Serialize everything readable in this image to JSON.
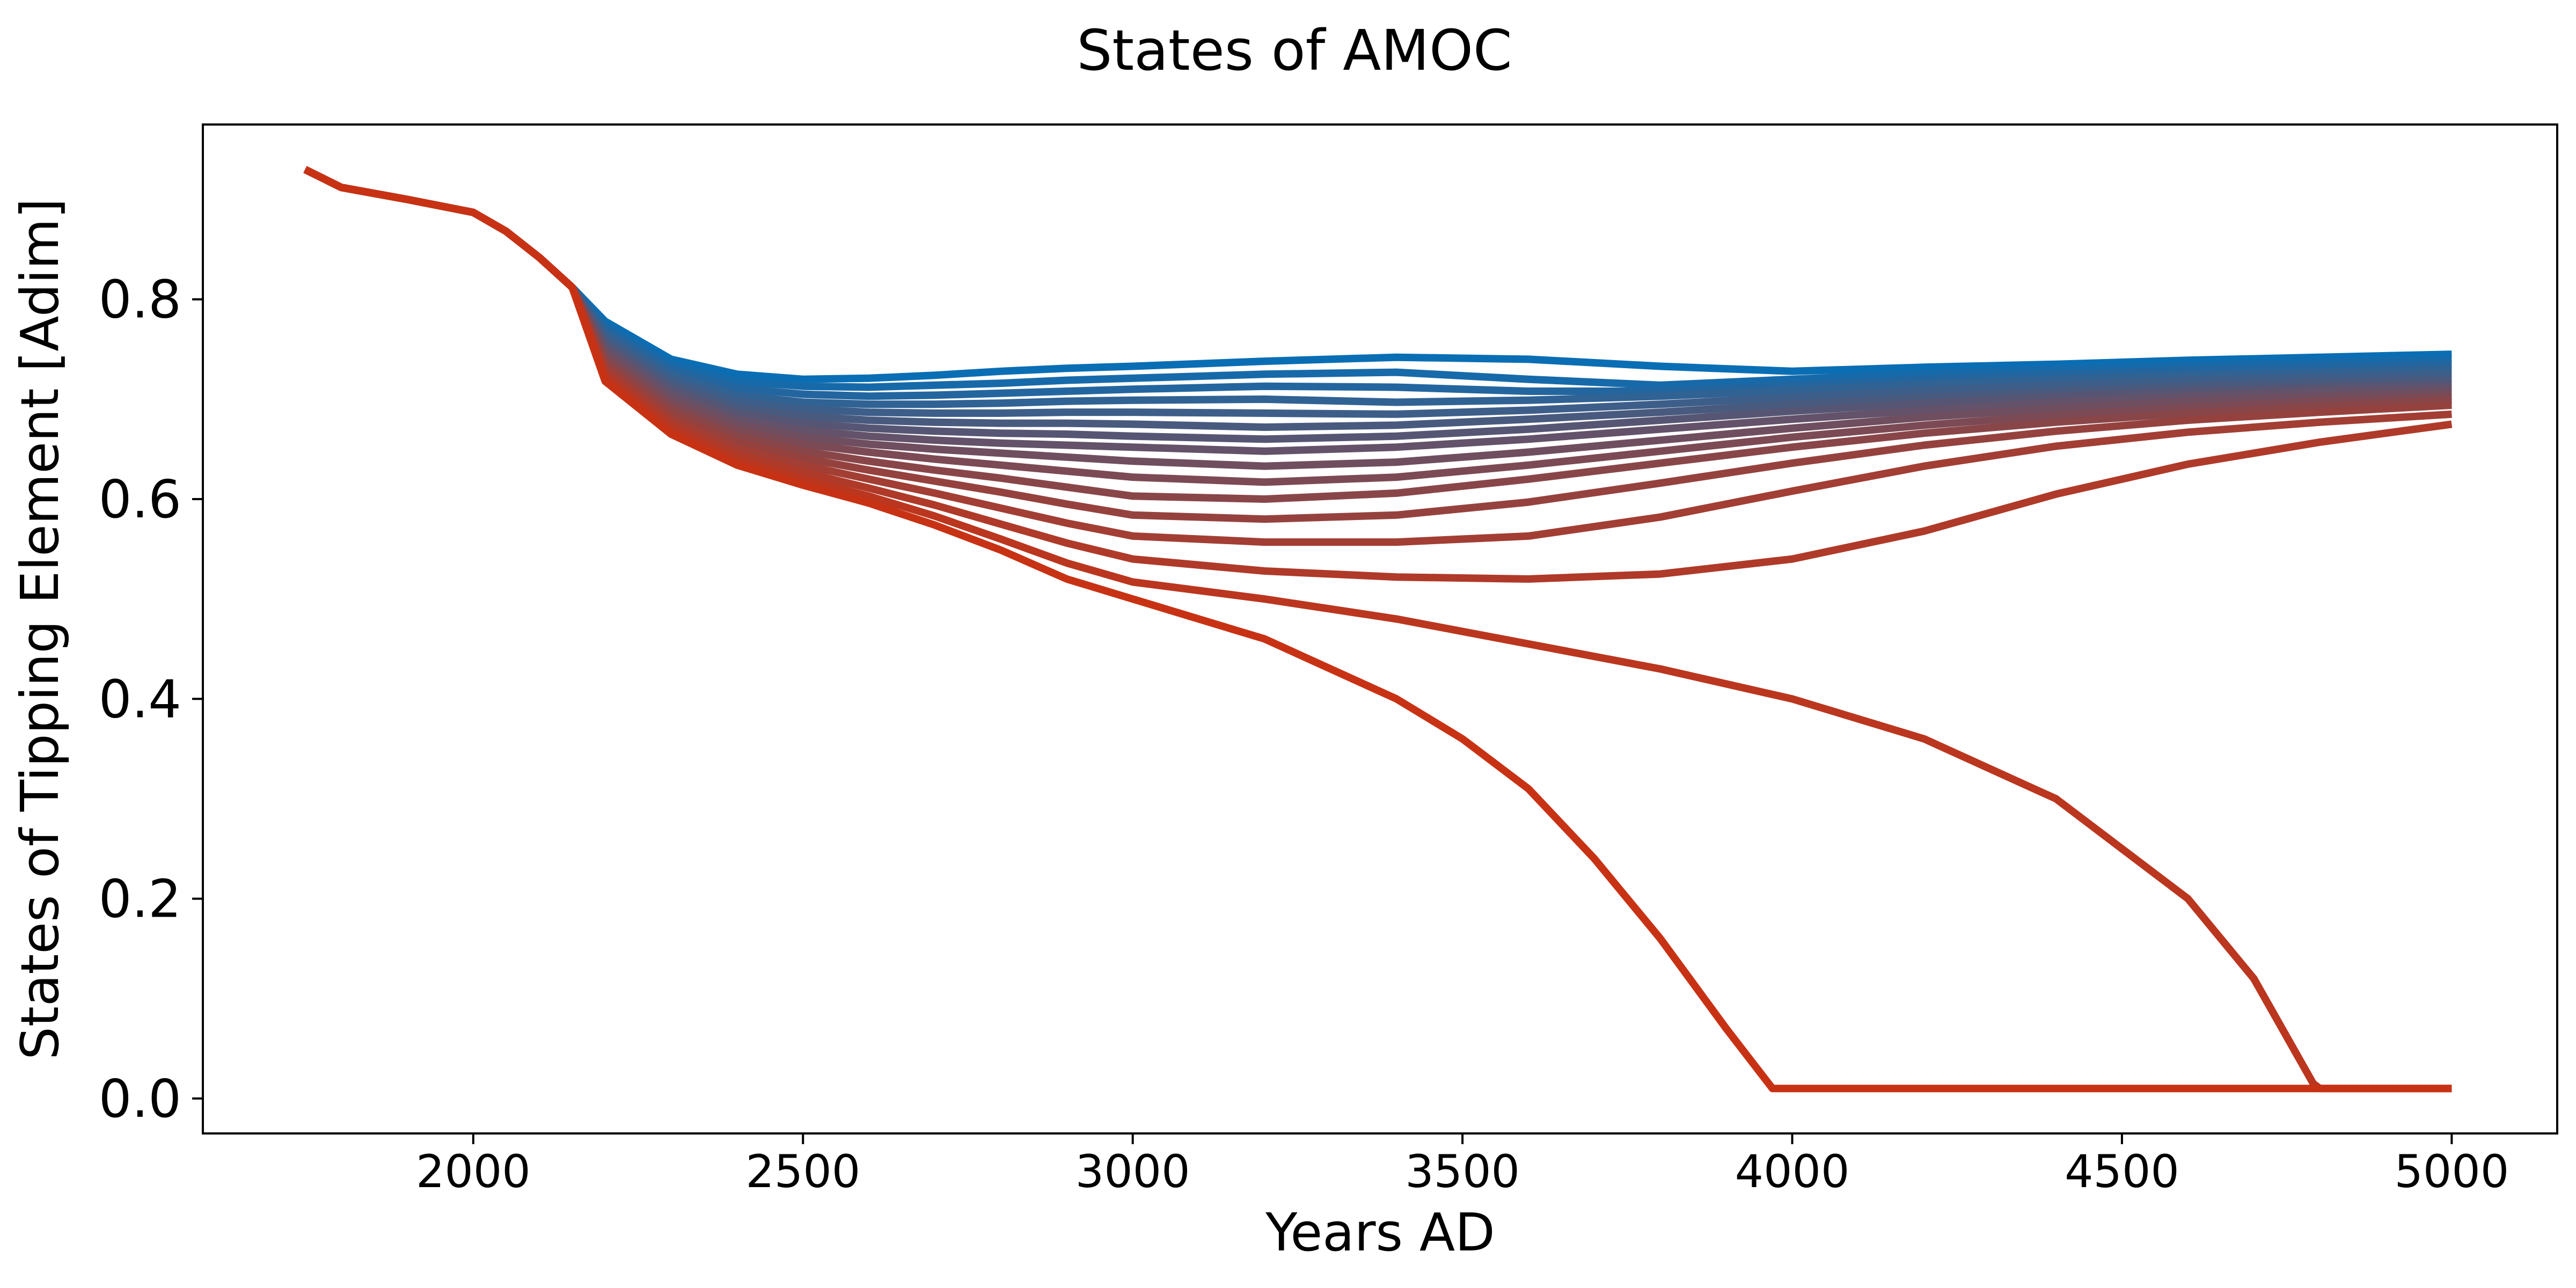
{
  "chart_data": {
    "type": "line",
    "title": "States of AMOC",
    "xlabel": "Years AD",
    "ylabel": "States of Tipping Element [Adim]",
    "xlim": [
      1590,
      5160
    ],
    "ylim": [
      -0.035,
      0.975
    ],
    "xticks": [
      2000,
      2500,
      3000,
      3500,
      4000,
      4500,
      5000
    ],
    "yticks": [
      0.0,
      0.2,
      0.4,
      0.6,
      0.8
    ],
    "xtick_labels": [
      "2000",
      "2500",
      "3000",
      "3500",
      "4000",
      "4500",
      "5000"
    ],
    "ytick_labels": [
      "0.0",
      "0.2",
      "0.4",
      "0.6",
      "0.8"
    ],
    "grid": false,
    "legend": false,
    "colors": {
      "start": "#0a6eb4",
      "end": "#c83214"
    },
    "common_start": {
      "x": [
        1745,
        1800,
        1900,
        2000,
        2050,
        2100,
        2150
      ],
      "y": [
        0.93,
        0.912,
        0.9,
        0.887,
        0.868,
        0.842,
        0.812
      ]
    },
    "series": [
      {
        "x": [
          2150,
          2200,
          2300,
          2400,
          2500,
          2600,
          2700,
          2800,
          2900,
          3000,
          3200,
          3400,
          3600,
          3800,
          4000,
          4200,
          4400,
          4600,
          4800,
          5000
        ],
        "y": [
          0.812,
          0.778,
          0.74,
          0.725,
          0.72,
          0.721,
          0.724,
          0.728,
          0.731,
          0.733,
          0.738,
          0.742,
          0.74,
          0.733,
          0.728,
          0.732,
          0.735,
          0.739,
          0.742,
          0.745
        ]
      },
      {
        "x": [
          2150,
          2200,
          2300,
          2400,
          2500,
          2600,
          2700,
          2800,
          2900,
          3000,
          3200,
          3400,
          3600,
          3800,
          4000,
          4200,
          4400,
          4600,
          4800,
          5000
        ],
        "y": [
          0.81,
          0.774,
          0.735,
          0.718,
          0.713,
          0.712,
          0.714,
          0.716,
          0.719,
          0.721,
          0.725,
          0.727,
          0.72,
          0.714,
          0.72,
          0.726,
          0.73,
          0.734,
          0.737,
          0.74
        ]
      },
      {
        "x": [
          2150,
          2200,
          2300,
          2400,
          2500,
          2600,
          2700,
          2800,
          2900,
          3000,
          3200,
          3400,
          3600,
          3800,
          4000,
          4200,
          4400,
          4600,
          4800,
          5000
        ],
        "y": [
          0.808,
          0.77,
          0.73,
          0.711,
          0.705,
          0.703,
          0.704,
          0.706,
          0.708,
          0.71,
          0.713,
          0.712,
          0.708,
          0.708,
          0.714,
          0.72,
          0.725,
          0.729,
          0.732,
          0.735
        ]
      },
      {
        "x": [
          2150,
          2200,
          2300,
          2400,
          2500,
          2600,
          2700,
          2800,
          2900,
          3000,
          3200,
          3400,
          3600,
          3800,
          4000,
          4200,
          4400,
          4600,
          4800,
          5000
        ],
        "y": [
          0.806,
          0.766,
          0.725,
          0.704,
          0.697,
          0.695,
          0.695,
          0.696,
          0.698,
          0.699,
          0.7,
          0.697,
          0.699,
          0.703,
          0.709,
          0.715,
          0.72,
          0.724,
          0.727,
          0.73
        ]
      },
      {
        "x": [
          2150,
          2200,
          2300,
          2400,
          2500,
          2600,
          2700,
          2800,
          2900,
          3000,
          3200,
          3400,
          3600,
          3800,
          4000,
          4200,
          4400,
          4600,
          4800,
          5000
        ],
        "y": [
          0.804,
          0.762,
          0.72,
          0.698,
          0.69,
          0.687,
          0.686,
          0.686,
          0.687,
          0.687,
          0.686,
          0.685,
          0.689,
          0.695,
          0.702,
          0.709,
          0.714,
          0.719,
          0.722,
          0.725
        ]
      },
      {
        "x": [
          2150,
          2200,
          2300,
          2400,
          2500,
          2600,
          2700,
          2800,
          2900,
          3000,
          3200,
          3400,
          3600,
          3800,
          4000,
          4200,
          4400,
          4600,
          4800,
          5000
        ],
        "y": [
          0.802,
          0.758,
          0.715,
          0.692,
          0.683,
          0.679,
          0.677,
          0.676,
          0.676,
          0.675,
          0.672,
          0.674,
          0.68,
          0.687,
          0.695,
          0.702,
          0.708,
          0.713,
          0.717,
          0.72
        ]
      },
      {
        "x": [
          2150,
          2200,
          2300,
          2400,
          2500,
          2600,
          2700,
          2800,
          2900,
          3000,
          3200,
          3400,
          3600,
          3800,
          4000,
          4200,
          4400,
          4600,
          4800,
          5000
        ],
        "y": [
          0.8,
          0.754,
          0.71,
          0.686,
          0.676,
          0.671,
          0.668,
          0.666,
          0.665,
          0.663,
          0.66,
          0.663,
          0.67,
          0.679,
          0.688,
          0.696,
          0.703,
          0.708,
          0.712,
          0.715
        ]
      },
      {
        "x": [
          2150,
          2200,
          2300,
          2400,
          2500,
          2600,
          2700,
          2800,
          2900,
          3000,
          3200,
          3400,
          3600,
          3800,
          4000,
          4200,
          4400,
          4600,
          4800,
          5000
        ],
        "y": [
          0.798,
          0.75,
          0.705,
          0.68,
          0.669,
          0.663,
          0.659,
          0.656,
          0.654,
          0.652,
          0.648,
          0.652,
          0.66,
          0.67,
          0.68,
          0.689,
          0.697,
          0.703,
          0.708,
          0.711
        ]
      },
      {
        "x": [
          2150,
          2200,
          2300,
          2400,
          2500,
          2600,
          2700,
          2800,
          2900,
          3000,
          3200,
          3400,
          3600,
          3800,
          4000,
          4200,
          4400,
          4600,
          4800,
          5000
        ],
        "y": [
          0.796,
          0.746,
          0.7,
          0.675,
          0.662,
          0.655,
          0.65,
          0.646,
          0.642,
          0.638,
          0.633,
          0.637,
          0.647,
          0.659,
          0.671,
          0.682,
          0.691,
          0.698,
          0.703,
          0.707
        ]
      },
      {
        "x": [
          2150,
          2200,
          2300,
          2400,
          2500,
          2600,
          2700,
          2800,
          2900,
          3000,
          3200,
          3400,
          3600,
          3800,
          4000,
          4200,
          4400,
          4600,
          4800,
          5000
        ],
        "y": [
          0.794,
          0.742,
          0.695,
          0.669,
          0.655,
          0.647,
          0.64,
          0.634,
          0.628,
          0.622,
          0.617,
          0.622,
          0.634,
          0.648,
          0.662,
          0.674,
          0.684,
          0.692,
          0.698,
          0.703
        ]
      },
      {
        "x": [
          2150,
          2200,
          2300,
          2400,
          2500,
          2600,
          2700,
          2800,
          2900,
          3000,
          3200,
          3400,
          3600,
          3800,
          4000,
          4200,
          4400,
          4600,
          4800,
          5000
        ],
        "y": [
          0.792,
          0.738,
          0.69,
          0.663,
          0.648,
          0.638,
          0.629,
          0.621,
          0.612,
          0.603,
          0.6,
          0.606,
          0.62,
          0.636,
          0.652,
          0.666,
          0.677,
          0.686,
          0.693,
          0.699
        ]
      },
      {
        "x": [
          2150,
          2200,
          2300,
          2400,
          2500,
          2600,
          2700,
          2800,
          2900,
          3000,
          3200,
          3400,
          3600,
          3800,
          4000,
          4200,
          4400,
          4600,
          4800,
          5000
        ],
        "y": [
          0.79,
          0.734,
          0.685,
          0.657,
          0.641,
          0.629,
          0.618,
          0.607,
          0.595,
          0.584,
          0.58,
          0.584,
          0.597,
          0.616,
          0.636,
          0.654,
          0.668,
          0.679,
          0.687,
          0.694
        ]
      },
      {
        "x": [
          2150,
          2200,
          2300,
          2400,
          2500,
          2600,
          2700,
          2800,
          2900,
          3000,
          3200,
          3400,
          3600,
          3800,
          4000,
          4200,
          4400,
          4600,
          4800,
          5000
        ],
        "y": [
          0.788,
          0.73,
          0.68,
          0.651,
          0.634,
          0.62,
          0.606,
          0.591,
          0.576,
          0.563,
          0.557,
          0.557,
          0.563,
          0.582,
          0.608,
          0.633,
          0.653,
          0.667,
          0.677,
          0.685
        ]
      },
      {
        "x": [
          2150,
          2200,
          2300,
          2400,
          2500,
          2600,
          2700,
          2800,
          2900,
          3000,
          3200,
          3400,
          3600,
          3800,
          4000,
          4200,
          4400,
          4600,
          4800,
          5000
        ],
        "y": [
          0.786,
          0.726,
          0.675,
          0.645,
          0.627,
          0.611,
          0.594,
          0.575,
          0.556,
          0.54,
          0.528,
          0.522,
          0.52,
          0.525,
          0.54,
          0.568,
          0.605,
          0.635,
          0.657,
          0.675
        ]
      },
      {
        "x": [
          2150,
          2200,
          2300,
          2400,
          2500,
          2600,
          2700,
          2800,
          2900,
          3000,
          3200,
          3400,
          3600,
          3800,
          4000,
          4200,
          4400,
          4600,
          4700,
          4790,
          4800,
          5000
        ],
        "y": [
          0.784,
          0.722,
          0.67,
          0.639,
          0.62,
          0.603,
          0.583,
          0.56,
          0.536,
          0.517,
          0.5,
          0.48,
          0.455,
          0.43,
          0.4,
          0.36,
          0.3,
          0.2,
          0.12,
          0.015,
          0.01,
          0.01
        ]
      },
      {
        "x": [
          2150,
          2200,
          2300,
          2400,
          2500,
          2600,
          2700,
          2800,
          2900,
          3000,
          3200,
          3400,
          3500,
          3600,
          3700,
          3800,
          3900,
          3970,
          4000,
          5000
        ],
        "y": [
          0.782,
          0.718,
          0.665,
          0.634,
          0.614,
          0.596,
          0.574,
          0.549,
          0.52,
          0.5,
          0.46,
          0.4,
          0.36,
          0.31,
          0.24,
          0.16,
          0.07,
          0.01,
          0.01,
          0.01
        ]
      }
    ]
  }
}
